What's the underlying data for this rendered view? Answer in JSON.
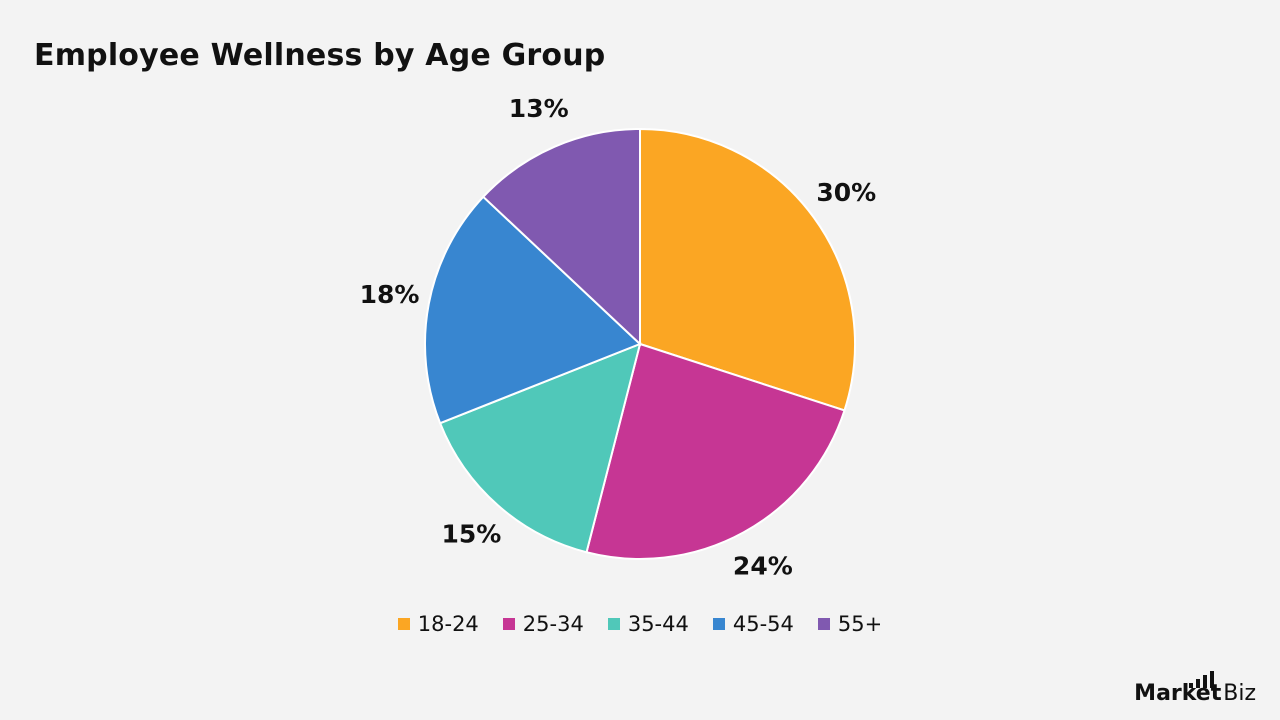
{
  "title": "Employee Wellness by Age Group",
  "chart_data": {
    "type": "pie",
    "title": "Employee Wellness by Age Group",
    "categories": [
      "18-24",
      "25-34",
      "35-44",
      "45-54",
      "55+"
    ],
    "values": [
      30,
      24,
      15,
      18,
      13
    ],
    "labels": [
      "30%",
      "24%",
      "15%",
      "18%",
      "13%"
    ],
    "colors": [
      "#fba623",
      "#c63694",
      "#50c8b9",
      "#3886d0",
      "#8059b0"
    ],
    "legend_position": "bottom"
  },
  "brand": {
    "strong": "Market",
    "rest": ".Biz"
  }
}
